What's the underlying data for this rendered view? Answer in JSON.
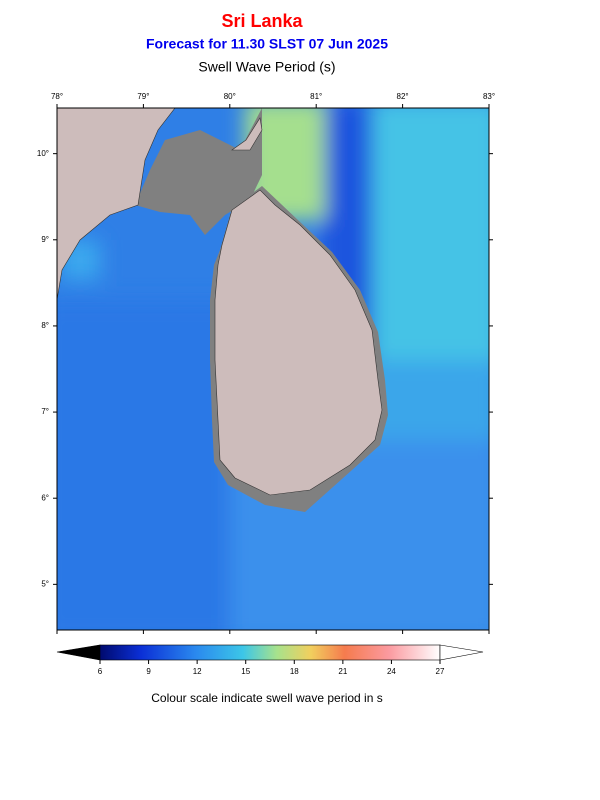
{
  "header": {
    "title": "Sri Lanka",
    "subtitle": "Forecast for  11.30 SLST 07 Jun 2025",
    "variable": "Swell Wave Period (s)"
  },
  "map": {
    "lon_range": [
      78,
      83
    ],
    "lat_range": [
      4.47,
      10.53
    ],
    "lon_ticks": [
      {
        "value": 78,
        "label": "78°"
      },
      {
        "value": 79,
        "label": "79°"
      },
      {
        "value": 80,
        "label": "80°"
      },
      {
        "value": 81,
        "label": "81°"
      },
      {
        "value": 82,
        "label": "82°"
      },
      {
        "value": 83,
        "label": "83°"
      }
    ],
    "lat_ticks": [
      {
        "value": 10,
        "label": "10°"
      },
      {
        "value": 9,
        "label": "9°"
      },
      {
        "value": 8,
        "label": "8°"
      },
      {
        "value": 7,
        "label": "7°"
      },
      {
        "value": 6,
        "label": "6°"
      },
      {
        "value": 5,
        "label": "5°"
      }
    ]
  },
  "colorbar": {
    "range": [
      6,
      27
    ],
    "ticks": [
      6,
      9,
      12,
      15,
      18,
      21,
      24,
      27
    ],
    "caption": "Colour scale indicate swell wave period in s"
  }
}
